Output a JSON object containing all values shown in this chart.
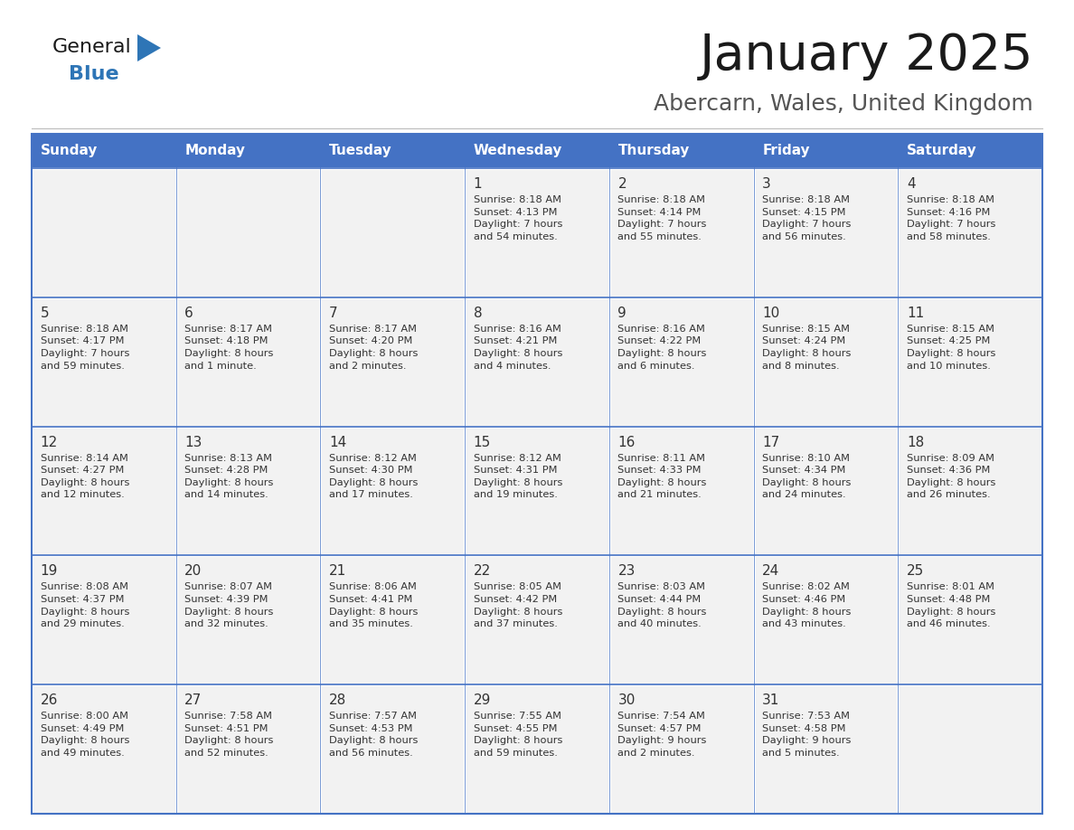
{
  "title": "January 2025",
  "subtitle": "Abercarn, Wales, United Kingdom",
  "header_color": "#4472C4",
  "header_text_color": "#FFFFFF",
  "day_headers": [
    "Sunday",
    "Monday",
    "Tuesday",
    "Wednesday",
    "Thursday",
    "Friday",
    "Saturday"
  ],
  "weeks": [
    [
      {
        "day": null,
        "text": ""
      },
      {
        "day": null,
        "text": ""
      },
      {
        "day": null,
        "text": ""
      },
      {
        "day": 1,
        "text": "Sunrise: 8:18 AM\nSunset: 4:13 PM\nDaylight: 7 hours\nand 54 minutes."
      },
      {
        "day": 2,
        "text": "Sunrise: 8:18 AM\nSunset: 4:14 PM\nDaylight: 7 hours\nand 55 minutes."
      },
      {
        "day": 3,
        "text": "Sunrise: 8:18 AM\nSunset: 4:15 PM\nDaylight: 7 hours\nand 56 minutes."
      },
      {
        "day": 4,
        "text": "Sunrise: 8:18 AM\nSunset: 4:16 PM\nDaylight: 7 hours\nand 58 minutes."
      }
    ],
    [
      {
        "day": 5,
        "text": "Sunrise: 8:18 AM\nSunset: 4:17 PM\nDaylight: 7 hours\nand 59 minutes."
      },
      {
        "day": 6,
        "text": "Sunrise: 8:17 AM\nSunset: 4:18 PM\nDaylight: 8 hours\nand 1 minute."
      },
      {
        "day": 7,
        "text": "Sunrise: 8:17 AM\nSunset: 4:20 PM\nDaylight: 8 hours\nand 2 minutes."
      },
      {
        "day": 8,
        "text": "Sunrise: 8:16 AM\nSunset: 4:21 PM\nDaylight: 8 hours\nand 4 minutes."
      },
      {
        "day": 9,
        "text": "Sunrise: 8:16 AM\nSunset: 4:22 PM\nDaylight: 8 hours\nand 6 minutes."
      },
      {
        "day": 10,
        "text": "Sunrise: 8:15 AM\nSunset: 4:24 PM\nDaylight: 8 hours\nand 8 minutes."
      },
      {
        "day": 11,
        "text": "Sunrise: 8:15 AM\nSunset: 4:25 PM\nDaylight: 8 hours\nand 10 minutes."
      }
    ],
    [
      {
        "day": 12,
        "text": "Sunrise: 8:14 AM\nSunset: 4:27 PM\nDaylight: 8 hours\nand 12 minutes."
      },
      {
        "day": 13,
        "text": "Sunrise: 8:13 AM\nSunset: 4:28 PM\nDaylight: 8 hours\nand 14 minutes."
      },
      {
        "day": 14,
        "text": "Sunrise: 8:12 AM\nSunset: 4:30 PM\nDaylight: 8 hours\nand 17 minutes."
      },
      {
        "day": 15,
        "text": "Sunrise: 8:12 AM\nSunset: 4:31 PM\nDaylight: 8 hours\nand 19 minutes."
      },
      {
        "day": 16,
        "text": "Sunrise: 8:11 AM\nSunset: 4:33 PM\nDaylight: 8 hours\nand 21 minutes."
      },
      {
        "day": 17,
        "text": "Sunrise: 8:10 AM\nSunset: 4:34 PM\nDaylight: 8 hours\nand 24 minutes."
      },
      {
        "day": 18,
        "text": "Sunrise: 8:09 AM\nSunset: 4:36 PM\nDaylight: 8 hours\nand 26 minutes."
      }
    ],
    [
      {
        "day": 19,
        "text": "Sunrise: 8:08 AM\nSunset: 4:37 PM\nDaylight: 8 hours\nand 29 minutes."
      },
      {
        "day": 20,
        "text": "Sunrise: 8:07 AM\nSunset: 4:39 PM\nDaylight: 8 hours\nand 32 minutes."
      },
      {
        "day": 21,
        "text": "Sunrise: 8:06 AM\nSunset: 4:41 PM\nDaylight: 8 hours\nand 35 minutes."
      },
      {
        "day": 22,
        "text": "Sunrise: 8:05 AM\nSunset: 4:42 PM\nDaylight: 8 hours\nand 37 minutes."
      },
      {
        "day": 23,
        "text": "Sunrise: 8:03 AM\nSunset: 4:44 PM\nDaylight: 8 hours\nand 40 minutes."
      },
      {
        "day": 24,
        "text": "Sunrise: 8:02 AM\nSunset: 4:46 PM\nDaylight: 8 hours\nand 43 minutes."
      },
      {
        "day": 25,
        "text": "Sunrise: 8:01 AM\nSunset: 4:48 PM\nDaylight: 8 hours\nand 46 minutes."
      }
    ],
    [
      {
        "day": 26,
        "text": "Sunrise: 8:00 AM\nSunset: 4:49 PM\nDaylight: 8 hours\nand 49 minutes."
      },
      {
        "day": 27,
        "text": "Sunrise: 7:58 AM\nSunset: 4:51 PM\nDaylight: 8 hours\nand 52 minutes."
      },
      {
        "day": 28,
        "text": "Sunrise: 7:57 AM\nSunset: 4:53 PM\nDaylight: 8 hours\nand 56 minutes."
      },
      {
        "day": 29,
        "text": "Sunrise: 7:55 AM\nSunset: 4:55 PM\nDaylight: 8 hours\nand 59 minutes."
      },
      {
        "day": 30,
        "text": "Sunrise: 7:54 AM\nSunset: 4:57 PM\nDaylight: 9 hours\nand 2 minutes."
      },
      {
        "day": 31,
        "text": "Sunrise: 7:53 AM\nSunset: 4:58 PM\nDaylight: 9 hours\nand 5 minutes."
      },
      {
        "day": null,
        "text": ""
      }
    ]
  ],
  "cell_bg_color": "#F2F2F2",
  "cell_border_color": "#4472C4",
  "cell_line_color": "#4472C4",
  "text_color": "#333333",
  "day_num_color": "#333333",
  "logo_general_color": "#1a1a1a",
  "logo_blue_color": "#2E75B6",
  "title_color": "#1a1a1a",
  "subtitle_color": "#555555",
  "bg_color": "#FFFFFF",
  "logo_triangle_color": "#2E75B6"
}
